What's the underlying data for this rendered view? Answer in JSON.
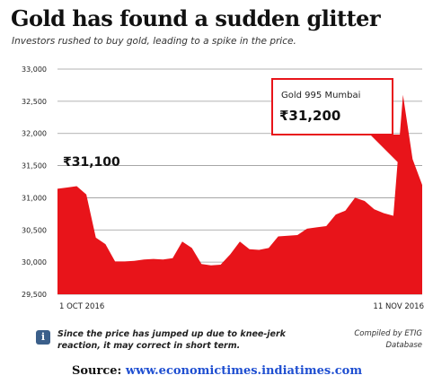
{
  "header": {
    "title": "Gold has found a sudden glitter",
    "subtitle": "Investors rushed to buy gold, leading to a spike in the price."
  },
  "callout": {
    "label": "Gold 995 Mumbai",
    "value": "₹31,200"
  },
  "start_value_label": "₹31,100",
  "footnote": {
    "icon": "info-icon",
    "text_line1": "Since the price has jumped up due to knee-jerk",
    "text_line2": "reaction, it may correct in short term."
  },
  "credit": {
    "line1": "Compiled by ETIG",
    "line2": "Database"
  },
  "source": {
    "label": "Source:",
    "url": "www.economictimes.indiatimes.com"
  },
  "colors": {
    "area": "#e8141a",
    "grid": "#9a9a9a",
    "text": "#222222",
    "link": "#1f4fd1"
  },
  "chart_data": {
    "type": "area",
    "xlabel": "",
    "ylabel": "",
    "ylim": [
      29500,
      33000
    ],
    "yticks": [
      29500,
      30000,
      30500,
      31000,
      31500,
      32000,
      32500,
      33000
    ],
    "ytick_labels": [
      "29,500",
      "30,000",
      "30,500",
      "31,000",
      "31,500",
      "32,000",
      "32,500",
      "33,000"
    ],
    "x_labels": [
      "1 OCT 2016",
      "11 NOV 2016"
    ],
    "grid": true,
    "series": [
      {
        "values": [
          31140,
          31160,
          31180,
          31050,
          30380,
          30280,
          30010,
          30010,
          30020,
          30040,
          30050,
          30040,
          30060,
          30320,
          30220,
          29970,
          29950,
          29960,
          30120,
          30320,
          30200,
          30190,
          30220,
          30400,
          30410,
          30420,
          30520,
          30540,
          30560,
          30740,
          30800,
          31000,
          30950,
          30820,
          30760,
          30720,
          32600,
          31600,
          31200
        ]
      }
    ]
  }
}
